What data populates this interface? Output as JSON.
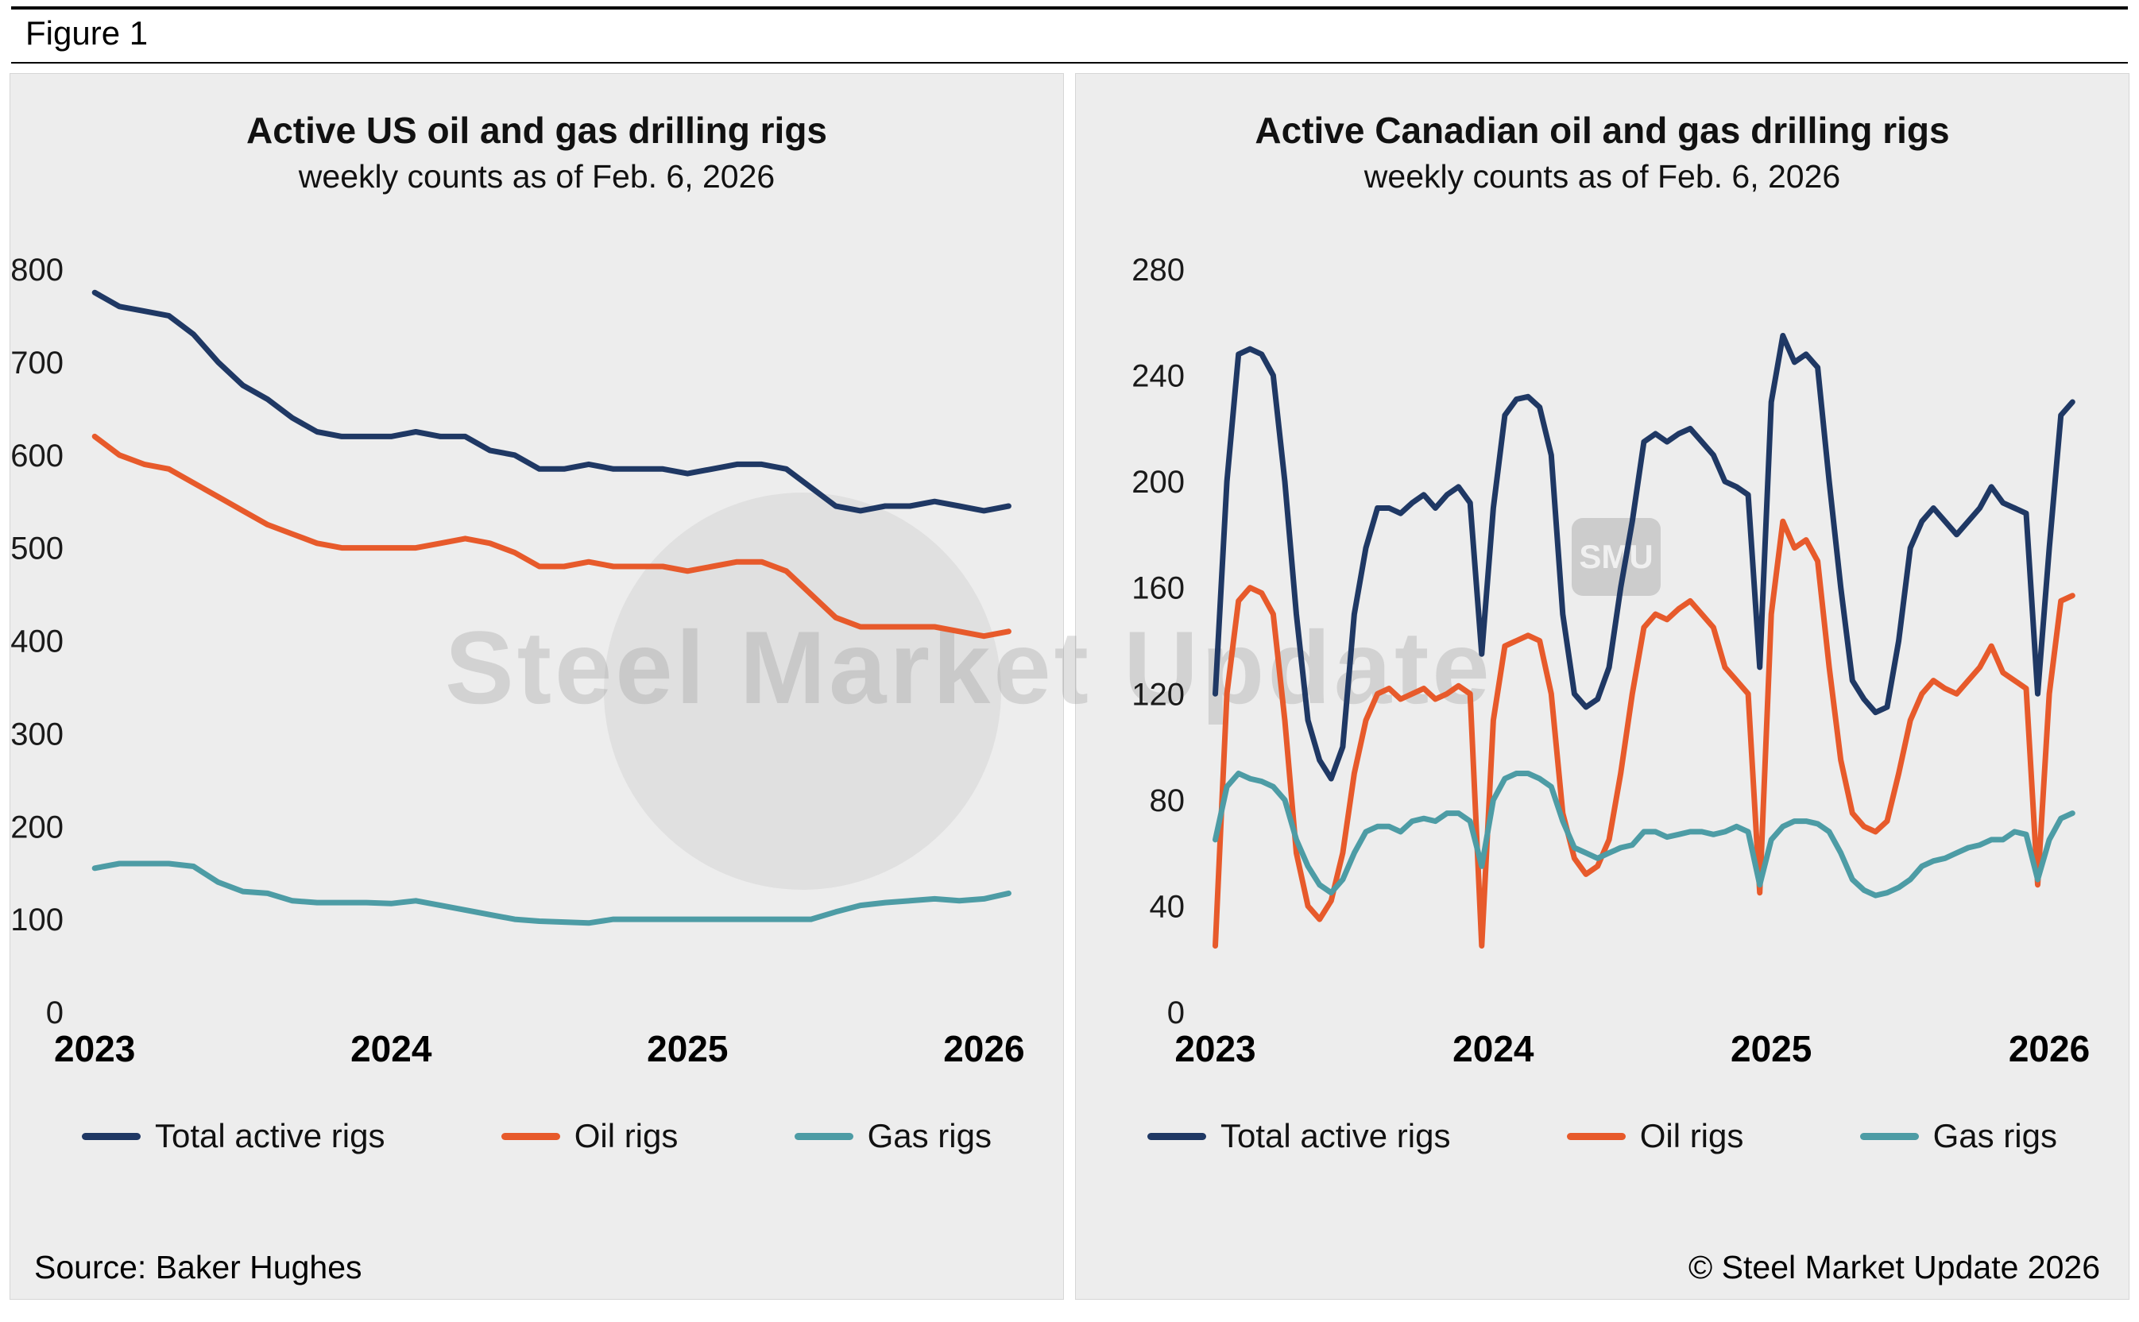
{
  "figure": {
    "label": "Figure 1"
  },
  "footer": {
    "source": "Source: Baker Hughes",
    "copyright": "© Steel Market Update 2026"
  },
  "watermark": {
    "text": "Steel Market Update",
    "badge": "SMU"
  },
  "colors": {
    "total": "#1F3864",
    "oil": "#E75A2B",
    "gas": "#4D9CA5",
    "panel_bg": "#EDEDED"
  },
  "chart_data": [
    {
      "type": "line",
      "title": "Active US oil and gas drilling rigs",
      "subtitle": "weekly counts as of Feb. 6, 2026",
      "x_start": 2023,
      "x_step": 0.08333,
      "xlim": [
        2022.97,
        2026.2
      ],
      "xticks": [
        2023,
        2024,
        2025,
        2026
      ],
      "ylim": [
        0,
        800
      ],
      "yticks": [
        0,
        100,
        200,
        300,
        400,
        500,
        600,
        700,
        800
      ],
      "grid": false,
      "legend_position": "bottom",
      "series": [
        {
          "name": "Total active rigs",
          "color": "#1F3864",
          "values": [
            775,
            760,
            755,
            750,
            730,
            700,
            675,
            660,
            640,
            625,
            620,
            620,
            620,
            625,
            620,
            620,
            605,
            600,
            585,
            585,
            590,
            585,
            585,
            585,
            580,
            585,
            590,
            590,
            585,
            565,
            545,
            540,
            545,
            545,
            550,
            545,
            540,
            545
          ]
        },
        {
          "name": "Oil rigs",
          "color": "#E75A2B",
          "values": [
            620,
            600,
            590,
            585,
            570,
            555,
            540,
            525,
            515,
            505,
            500,
            500,
            500,
            500,
            505,
            510,
            505,
            495,
            480,
            480,
            485,
            480,
            480,
            480,
            475,
            480,
            485,
            485,
            475,
            450,
            425,
            415,
            415,
            415,
            415,
            410,
            405,
            410
          ]
        },
        {
          "name": "Gas rigs",
          "color": "#4D9CA5",
          "values": [
            155,
            160,
            160,
            160,
            157,
            140,
            130,
            128,
            120,
            118,
            118,
            118,
            117,
            120,
            115,
            110,
            105,
            100,
            98,
            97,
            96,
            100,
            100,
            100,
            100,
            100,
            100,
            100,
            100,
            100,
            108,
            115,
            118,
            120,
            122,
            120,
            122,
            128
          ]
        }
      ]
    },
    {
      "type": "line",
      "title": "Active Canadian oil and gas drilling rigs",
      "subtitle": "weekly counts as of Feb. 6, 2026",
      "x_start": 2023,
      "x_step": 0.04167,
      "xlim": [
        2022.97,
        2026.2
      ],
      "xticks": [
        2023,
        2024,
        2025,
        2026
      ],
      "ylim": [
        0,
        280
      ],
      "yticks": [
        0,
        40,
        80,
        120,
        160,
        200,
        240,
        280
      ],
      "grid": false,
      "legend_position": "bottom",
      "series": [
        {
          "name": "Total active rigs",
          "color": "#1F3864",
          "values": [
            120,
            200,
            248,
            250,
            248,
            240,
            200,
            150,
            110,
            95,
            88,
            100,
            150,
            175,
            190,
            190,
            188,
            192,
            195,
            190,
            195,
            198,
            192,
            135,
            190,
            225,
            231,
            232,
            228,
            210,
            150,
            120,
            115,
            118,
            130,
            160,
            185,
            215,
            218,
            215,
            218,
            220,
            215,
            210,
            200,
            198,
            195,
            130,
            230,
            255,
            245,
            248,
            243,
            200,
            160,
            125,
            118,
            113,
            115,
            140,
            175,
            185,
            190,
            185,
            180,
            185,
            190,
            198,
            192,
            190,
            188,
            120,
            175,
            225,
            230
          ]
        },
        {
          "name": "Oil rigs",
          "color": "#E75A2B",
          "values": [
            25,
            120,
            155,
            160,
            158,
            150,
            110,
            60,
            40,
            35,
            42,
            60,
            90,
            110,
            120,
            122,
            118,
            120,
            122,
            118,
            120,
            123,
            120,
            25,
            110,
            138,
            140,
            142,
            140,
            120,
            75,
            58,
            52,
            55,
            65,
            90,
            120,
            145,
            150,
            148,
            152,
            155,
            150,
            145,
            130,
            125,
            120,
            45,
            150,
            185,
            175,
            178,
            170,
            130,
            95,
            75,
            70,
            68,
            72,
            90,
            110,
            120,
            125,
            122,
            120,
            125,
            130,
            138,
            128,
            125,
            122,
            48,
            120,
            155,
            157
          ]
        },
        {
          "name": "Gas rigs",
          "color": "#4D9CA5",
          "values": [
            65,
            85,
            90,
            88,
            87,
            85,
            80,
            65,
            55,
            48,
            45,
            50,
            60,
            68,
            70,
            70,
            68,
            72,
            73,
            72,
            75,
            75,
            72,
            55,
            80,
            88,
            90,
            90,
            88,
            85,
            72,
            62,
            60,
            58,
            60,
            62,
            63,
            68,
            68,
            66,
            67,
            68,
            68,
            67,
            68,
            70,
            68,
            48,
            65,
            70,
            72,
            72,
            71,
            68,
            60,
            50,
            46,
            44,
            45,
            47,
            50,
            55,
            57,
            58,
            60,
            62,
            63,
            65,
            65,
            68,
            67,
            50,
            65,
            73,
            75
          ]
        }
      ]
    }
  ]
}
